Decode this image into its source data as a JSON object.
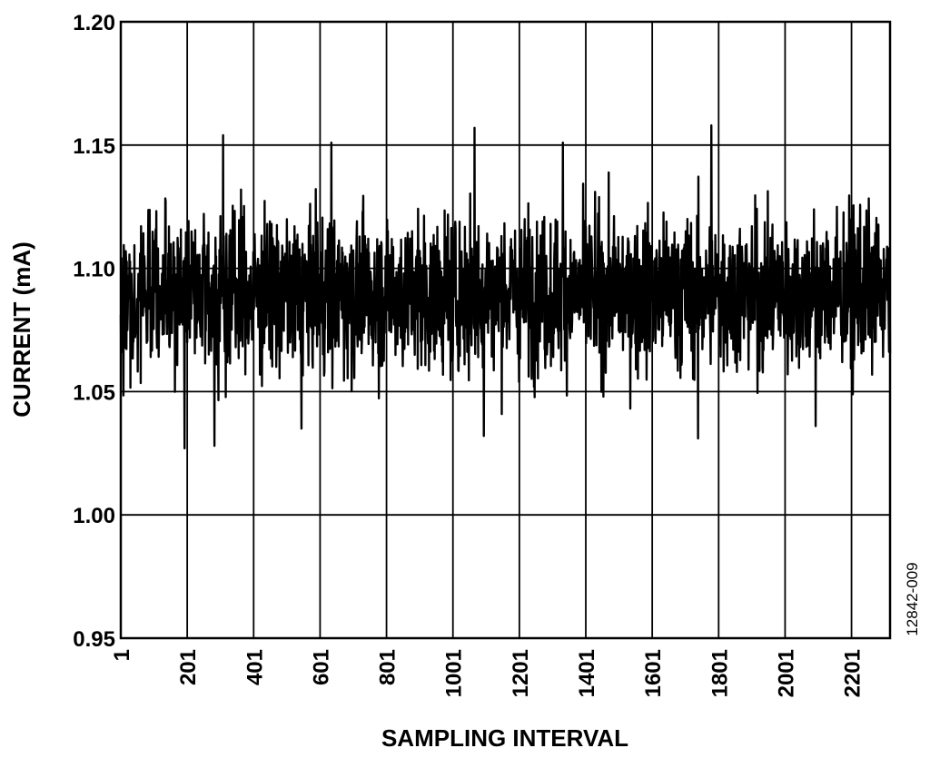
{
  "figure_id": "12842-009",
  "chart_data": {
    "type": "line",
    "xlabel": "SAMPLING INTERVAL",
    "ylabel": "CURRENT (mA)",
    "xlim": [
      1,
      2317
    ],
    "ylim": [
      0.95,
      1.2
    ],
    "x_ticks": [
      1,
      201,
      401,
      601,
      801,
      1001,
      1201,
      1401,
      1601,
      1801,
      2001,
      2201
    ],
    "x_tick_labels": [
      "1",
      "201",
      "401",
      "601",
      "801",
      "1001",
      "1201",
      "1401",
      "1601",
      "1801",
      "2001",
      "2201"
    ],
    "y_ticks": [
      0.95,
      1.0,
      1.05,
      1.1,
      1.15,
      1.2
    ],
    "y_tick_labels": [
      "0.95",
      "1.00",
      "1.05",
      "1.10",
      "1.15",
      "1.20"
    ],
    "grid": true,
    "series_color": "#000000",
    "sample_count": 2317,
    "mean": 1.09,
    "range_min": 1.027,
    "range_max": 1.158,
    "notable_points": [
      {
        "x": 193,
        "y": 1.027
      },
      {
        "x": 283,
        "y": 1.028
      },
      {
        "x": 309,
        "y": 1.154
      },
      {
        "x": 545,
        "y": 1.035
      },
      {
        "x": 635,
        "y": 1.151
      },
      {
        "x": 1066,
        "y": 1.157
      },
      {
        "x": 1094,
        "y": 1.032
      },
      {
        "x": 1332,
        "y": 1.151
      },
      {
        "x": 1739,
        "y": 1.031
      },
      {
        "x": 1779,
        "y": 1.158
      },
      {
        "x": 2093,
        "y": 1.036
      }
    ]
  }
}
